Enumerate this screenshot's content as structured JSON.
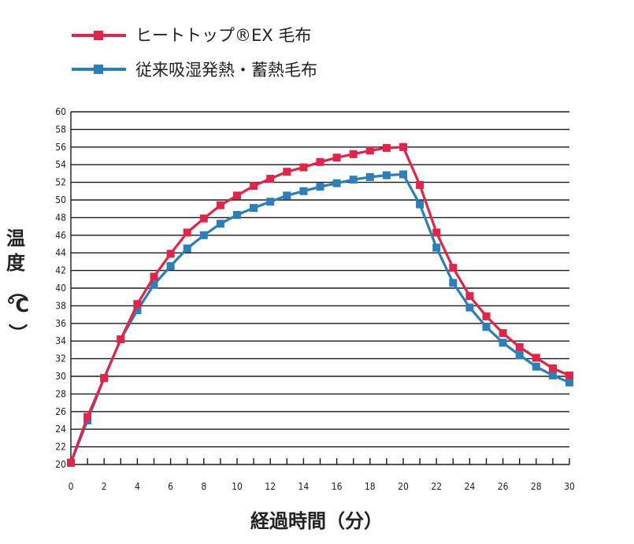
{
  "colors": {
    "series_red": "#e0254a",
    "series_blue": "#2c7fb8",
    "grid": "#1a1a1a",
    "text": "#222222"
  },
  "chart_data": {
    "type": "line",
    "title": "",
    "xlabel": "経過時間（分）",
    "ylabel": "温度（℃）",
    "ylabel_chars": [
      "温",
      "度",
      "（",
      "℃",
      "）"
    ],
    "xlim": [
      0,
      30
    ],
    "ylim": [
      20,
      60
    ],
    "grid": "horizontal",
    "legend_position": "top-left",
    "x_ticks": [
      "0",
      "2",
      "4",
      "6",
      "8",
      "10",
      "12",
      "14",
      "16",
      "18",
      "20",
      "22",
      "24",
      "26",
      "28",
      "30"
    ],
    "y_ticks": [
      "20",
      "22",
      "24",
      "26",
      "28",
      "30",
      "32",
      "34",
      "36",
      "38",
      "40",
      "42",
      "44",
      "46",
      "48",
      "50",
      "52",
      "54",
      "56",
      "58",
      "60"
    ],
    "x": [
      0,
      1,
      2,
      3,
      4,
      5,
      6,
      7,
      8,
      9,
      10,
      11,
      12,
      13,
      14,
      15,
      16,
      17,
      18,
      19,
      20,
      21,
      22,
      23,
      24,
      25,
      26,
      27,
      28,
      29,
      30
    ],
    "series": [
      {
        "name": "ヒートトップ®EX 毛布",
        "color": "#e0254a",
        "values": [
          20.2,
          25.4,
          29.8,
          34.2,
          38.2,
          41.3,
          43.9,
          46.3,
          47.9,
          49.4,
          50.5,
          51.6,
          52.4,
          53.2,
          53.7,
          54.3,
          54.8,
          55.2,
          55.6,
          55.9,
          56.0,
          51.7,
          46.3,
          42.3,
          39.1,
          36.8,
          34.9,
          33.3,
          32.1,
          30.9,
          30.1
        ]
      },
      {
        "name": "従来吸湿発熱・蓄熱毛布",
        "color": "#2c7fb8",
        "values": [
          20.2,
          25.0,
          29.8,
          34.2,
          37.5,
          40.4,
          42.5,
          44.5,
          46.0,
          47.3,
          48.3,
          49.1,
          49.8,
          50.5,
          51.0,
          51.5,
          51.9,
          52.3,
          52.6,
          52.8,
          52.9,
          49.5,
          44.6,
          40.6,
          37.8,
          35.6,
          33.8,
          32.4,
          31.1,
          30.1,
          29.3
        ]
      }
    ]
  }
}
